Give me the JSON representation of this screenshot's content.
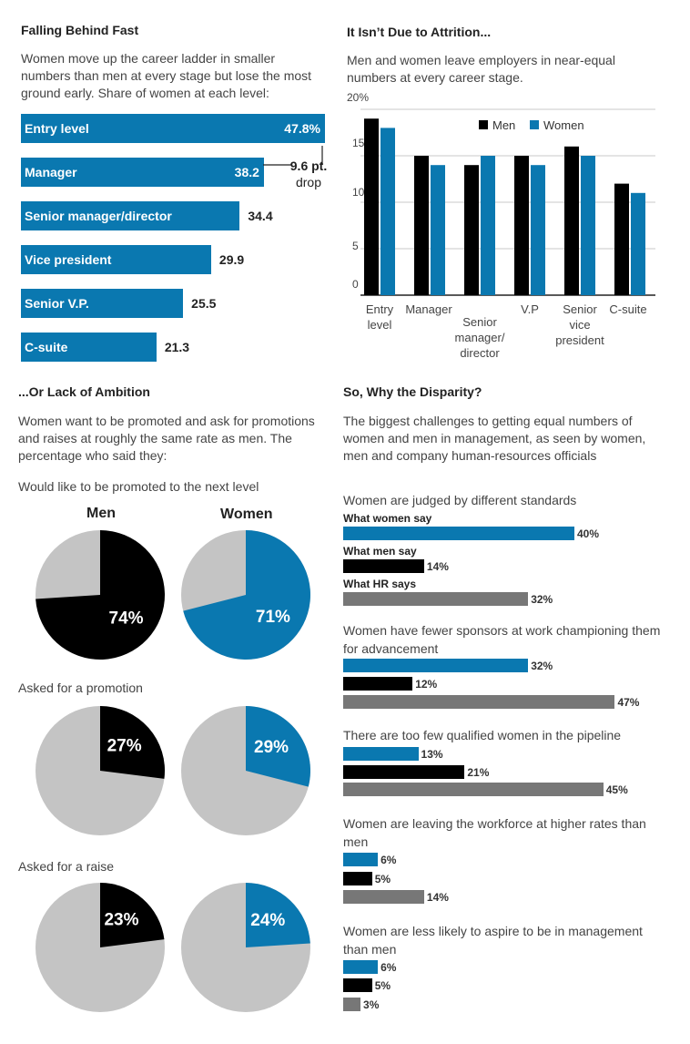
{
  "colors": {
    "blue": "#0a78b0",
    "black": "#000000",
    "gray": "#777777",
    "light_gray": "#c4c4c4"
  },
  "panel1": {
    "title": "Falling Behind Fast",
    "description": "Women move up the career ladder in smaller numbers than men at every stage but lose the most ground early. Share of women at each level:",
    "drop_value": "9.6 pt.",
    "drop_word": "drop"
  },
  "panel2": {
    "title": "It Isn’t Due to Attrition...",
    "description": "Men and women leave employers in near-equal numbers at every career stage."
  },
  "panel3": {
    "title": "...Or Lack of Ambition",
    "description": "Women want to be promoted and ask for promotions and raises at roughly the same rate as men. The percentage who said they:",
    "men_label": "Men",
    "women_label": "Women"
  },
  "panel4": {
    "title": "So, Why the Disparity?",
    "description": "The biggest challenges to getting equal numbers of women and men in management, as seen by women, men and company human-resources officials"
  },
  "chart_data": [
    {
      "type": "bar",
      "orientation": "horizontal",
      "categories": [
        "Entry level",
        "Manager",
        "Senior manager/director",
        "Vice president",
        "Senior V.P.",
        "C-suite"
      ],
      "values": [
        47.8,
        38.2,
        34.4,
        29.9,
        25.5,
        21.3
      ],
      "value_labels": [
        "47.8%",
        "38.2",
        "34.4",
        "29.9",
        "25.5",
        "21.3"
      ],
      "annotation": "9.6 pt. drop"
    },
    {
      "type": "bar",
      "categories": [
        "Entry level",
        "Manager",
        "Senior manager/ director",
        "V.P",
        "Senior vice president",
        "C-suite"
      ],
      "series": [
        {
          "name": "Men",
          "values": [
            19,
            15,
            14,
            15,
            16,
            12
          ]
        },
        {
          "name": "Women",
          "values": [
            18,
            14,
            15,
            14,
            15,
            11
          ]
        }
      ],
      "yticks": [
        "0",
        "5",
        "10",
        "15",
        "20%"
      ],
      "ylim": [
        0,
        20
      ],
      "grid": true,
      "legend": "top-right"
    },
    {
      "type": "pie",
      "questions": [
        {
          "label": "Would like to be promoted to the next level",
          "men": 74,
          "women": 71,
          "men_label": "74%",
          "women_label": "71%"
        },
        {
          "label": "Asked for a promotion",
          "men": 27,
          "women": 29,
          "men_label": "27%",
          "women_label": "29%"
        },
        {
          "label": "Asked for a raise",
          "men": 23,
          "women": 24,
          "men_label": "23%",
          "women_label": "24%"
        }
      ]
    },
    {
      "type": "bar",
      "orientation": "horizontal",
      "series_names": [
        "What women say",
        "What men say",
        "What HR says"
      ],
      "groups": [
        {
          "label": "Women are judged by different standards",
          "values": [
            40,
            14,
            32
          ],
          "labels": [
            "40%",
            "14%",
            "32%"
          ]
        },
        {
          "label": "Women have fewer sponsors at work championing them for advancement",
          "values": [
            32,
            12,
            47
          ],
          "labels": [
            "32%",
            "12%",
            "47%"
          ]
        },
        {
          "label": "There are too few qualified women in the pipeline",
          "values": [
            13,
            21,
            45
          ],
          "labels": [
            "13%",
            "21%",
            "45%"
          ]
        },
        {
          "label": "Women are leaving the workforce at higher rates than men",
          "values": [
            6,
            5,
            14
          ],
          "labels": [
            "6%",
            "5%",
            "14%"
          ]
        },
        {
          "label": "Women are less likely to aspire to be in management than men",
          "values": [
            6,
            5,
            3
          ],
          "labels": [
            "6%",
            "5%",
            "3%"
          ]
        }
      ]
    }
  ]
}
